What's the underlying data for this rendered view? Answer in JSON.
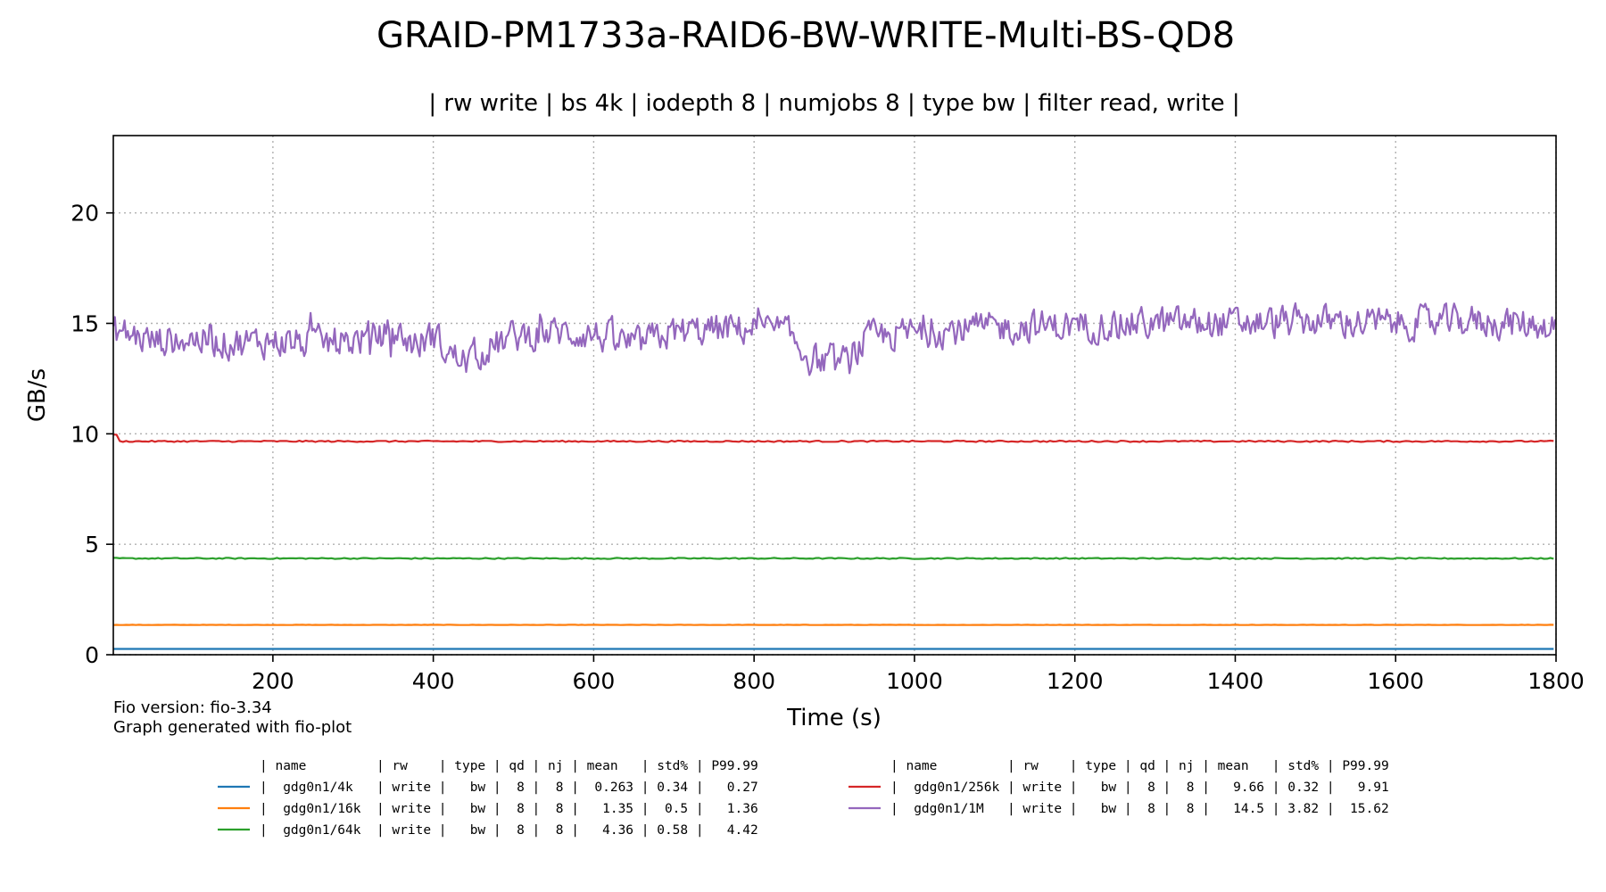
{
  "chart_data": {
    "type": "line",
    "title": "GRAID-PM1733a-RAID6-BW-WRITE-Multi-BS-QD8",
    "subtitle": "| rw write | bs 4k | iodepth 8 | numjobs 8 | type bw | filter read, write |",
    "xlabel": "Time (s)",
    "ylabel": "GB/s",
    "xlim": [
      1,
      1800
    ],
    "ylim": [
      0,
      23.5
    ],
    "xticks": [
      "200",
      "400",
      "600",
      "800",
      "1000",
      "1200",
      "1400",
      "1600",
      "1800"
    ],
    "yticks": [
      "0",
      "5",
      "10",
      "15",
      "20"
    ],
    "grid": true,
    "legend_position": "bottom",
    "footnotes": [
      "Fio version: fio-3.34",
      "Graph generated with fio-plot"
    ],
    "legend_header": "| name         | rw    | type | qd | nj | mean   | std% | P99.99",
    "series": [
      {
        "name": "gdg0n1/4k",
        "color": "#1f77b4",
        "legend_row": "|  gdg0n1/4k   | write |   bw |  8 |  8 |  0.263 | 0.34 |   0.27",
        "mean": 0.263,
        "stdpct": 0.34,
        "p9999": 0.27
      },
      {
        "name": "gdg0n1/16k",
        "color": "#ff7f0e",
        "legend_row": "|  gdg0n1/16k  | write |   bw |  8 |  8 |   1.35 |  0.5 |   1.36",
        "mean": 1.35,
        "stdpct": 0.5,
        "p9999": 1.36
      },
      {
        "name": "gdg0n1/64k",
        "color": "#2ca02c",
        "legend_row": "|  gdg0n1/64k  | write |   bw |  8 |  8 |   4.36 | 0.58 |   4.42",
        "mean": 4.36,
        "stdpct": 0.58,
        "p9999": 4.42
      },
      {
        "name": "gdg0n1/256k",
        "color": "#d62728",
        "legend_row": "|  gdg0n1/256k | write |   bw |  8 |  8 |   9.66 | 0.32 |   9.91",
        "mean": 9.66,
        "stdpct": 0.32,
        "p9999": 9.91
      },
      {
        "name": "gdg0n1/1M",
        "color": "#9467bd",
        "legend_row": "|  gdg0n1/1M   | write |   bw |  8 |  8 |   14.5 | 3.82 |  15.62",
        "mean": 14.5,
        "stdpct": 3.82,
        "p9999": 15.62,
        "trend_points": [
          [
            1,
            14.7
          ],
          [
            50,
            14.2
          ],
          [
            100,
            14.3
          ],
          [
            150,
            14.1
          ],
          [
            200,
            14.2
          ],
          [
            250,
            14.1
          ],
          [
            300,
            14.2
          ],
          [
            350,
            14.6
          ],
          [
            380,
            14.0
          ],
          [
            400,
            14.5
          ],
          [
            420,
            13.6
          ],
          [
            440,
            13.3
          ],
          [
            470,
            13.9
          ],
          [
            500,
            14.4
          ],
          [
            550,
            14.6
          ],
          [
            600,
            14.5
          ],
          [
            650,
            14.0
          ],
          [
            700,
            14.6
          ],
          [
            750,
            14.7
          ],
          [
            800,
            14.8
          ],
          [
            840,
            14.6
          ],
          [
            870,
            13.4
          ],
          [
            900,
            13.2
          ],
          [
            920,
            13.3
          ],
          [
            940,
            14.3
          ],
          [
            1000,
            14.6
          ],
          [
            1100,
            14.8
          ],
          [
            1200,
            14.9
          ],
          [
            1300,
            15.0
          ],
          [
            1400,
            15.0
          ],
          [
            1500,
            15.1
          ],
          [
            1600,
            15.0
          ],
          [
            1700,
            15.1
          ],
          [
            1800,
            14.9
          ]
        ]
      }
    ]
  }
}
